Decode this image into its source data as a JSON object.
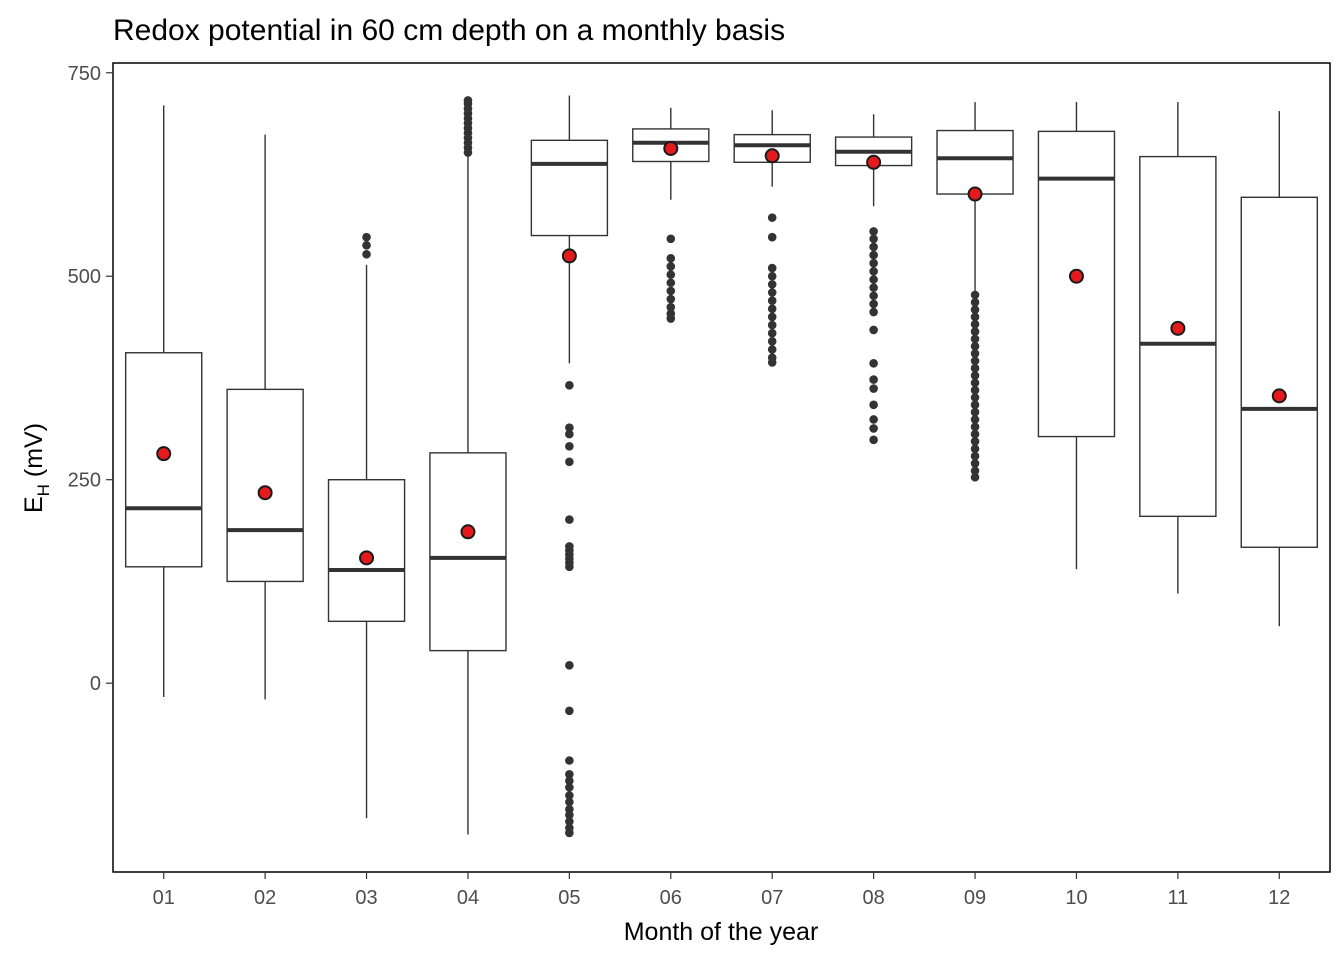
{
  "chart_data": {
    "type": "boxplot",
    "title": "Redox potential in 60 cm depth on a monthly basis",
    "xlabel": "Month of the year",
    "ylabel": {
      "main": "E",
      "subscript": "H",
      "suffix": " (mV)"
    },
    "ylim": [
      -232,
      762
    ],
    "yticks": [
      0,
      250,
      500,
      750
    ],
    "grid": false,
    "colors": {
      "box_stroke": "#333333",
      "outlier": "#333333",
      "mean_fill": "#e41a1c",
      "mean_stroke": "#1a1a1a",
      "panel_border": "#000000"
    },
    "categories": [
      "01",
      "02",
      "03",
      "04",
      "05",
      "06",
      "07",
      "08",
      "09",
      "10",
      "11",
      "12"
    ],
    "boxes": [
      {
        "month": "01",
        "whisker_low": -17,
        "q1": 143,
        "median": 215,
        "q3": 406,
        "whisker_high": 710,
        "mean": 282,
        "outliers": []
      },
      {
        "month": "02",
        "whisker_low": -20,
        "q1": 125,
        "median": 188,
        "q3": 361,
        "whisker_high": 674,
        "mean": 234,
        "outliers": []
      },
      {
        "month": "03",
        "whisker_low": -166,
        "q1": 76,
        "median": 139,
        "q3": 250,
        "whisker_high": 514,
        "mean": 154,
        "outliers": [
          527,
          538,
          548
        ]
      },
      {
        "month": "04",
        "whisker_low": -186,
        "q1": 40,
        "median": 154,
        "q3": 283,
        "whisker_high": 648,
        "mean": 186,
        "outliers": [
          652,
          658,
          664,
          670,
          676,
          682,
          688,
          694,
          700,
          706,
          712,
          716
        ]
      },
      {
        "month": "05",
        "whisker_low": 393,
        "q1": 550,
        "median": 638,
        "q3": 667,
        "whisker_high": 722,
        "mean": 525,
        "outliers": [
          366,
          314,
          306,
          291,
          272,
          201,
          168,
          163,
          158,
          153,
          148,
          143,
          22,
          -34,
          -95,
          -112,
          -120,
          -128,
          -138,
          -146,
          -155,
          -162,
          -170,
          -178,
          -184
        ]
      },
      {
        "month": "06",
        "whisker_low": 594,
        "q1": 641,
        "median": 664,
        "q3": 681,
        "whisker_high": 707,
        "mean": 657,
        "outliers": [
          546,
          522,
          512,
          502,
          492,
          482,
          472,
          462,
          454,
          448
        ]
      },
      {
        "month": "07",
        "whisker_low": 610,
        "q1": 640,
        "median": 661,
        "q3": 674,
        "whisker_high": 704,
        "mean": 648,
        "outliers": [
          572,
          548,
          510,
          500,
          490,
          480,
          470,
          460,
          450,
          440,
          430,
          420,
          410,
          400,
          394
        ]
      },
      {
        "month": "08",
        "whisker_low": 586,
        "q1": 636,
        "median": 653,
        "q3": 671,
        "whisker_high": 699,
        "mean": 640,
        "outliers": [
          555,
          546,
          536,
          526,
          516,
          506,
          496,
          486,
          476,
          466,
          456,
          434,
          393,
          373,
          362,
          342,
          324,
          313,
          299
        ]
      },
      {
        "month": "09",
        "whisker_low": 482,
        "q1": 601,
        "median": 645,
        "q3": 679,
        "whisker_high": 714,
        "mean": 601,
        "outliers": [
          477,
          468,
          459,
          450,
          441,
          432,
          423,
          414,
          405,
          396,
          387,
          378,
          369,
          360,
          351,
          342,
          333,
          324,
          315,
          306,
          297,
          288,
          279,
          270,
          261,
          253
        ]
      },
      {
        "month": "10",
        "whisker_low": 140,
        "q1": 303,
        "median": 620,
        "q3": 678,
        "whisker_high": 714,
        "mean": 500,
        "outliers": []
      },
      {
        "month": "11",
        "whisker_low": 110,
        "q1": 205,
        "median": 417,
        "q3": 647,
        "whisker_high": 714,
        "mean": 436,
        "outliers": []
      },
      {
        "month": "12",
        "whisker_low": 70,
        "q1": 167,
        "median": 337,
        "q3": 597,
        "whisker_high": 703,
        "mean": 353,
        "outliers": []
      }
    ]
  }
}
